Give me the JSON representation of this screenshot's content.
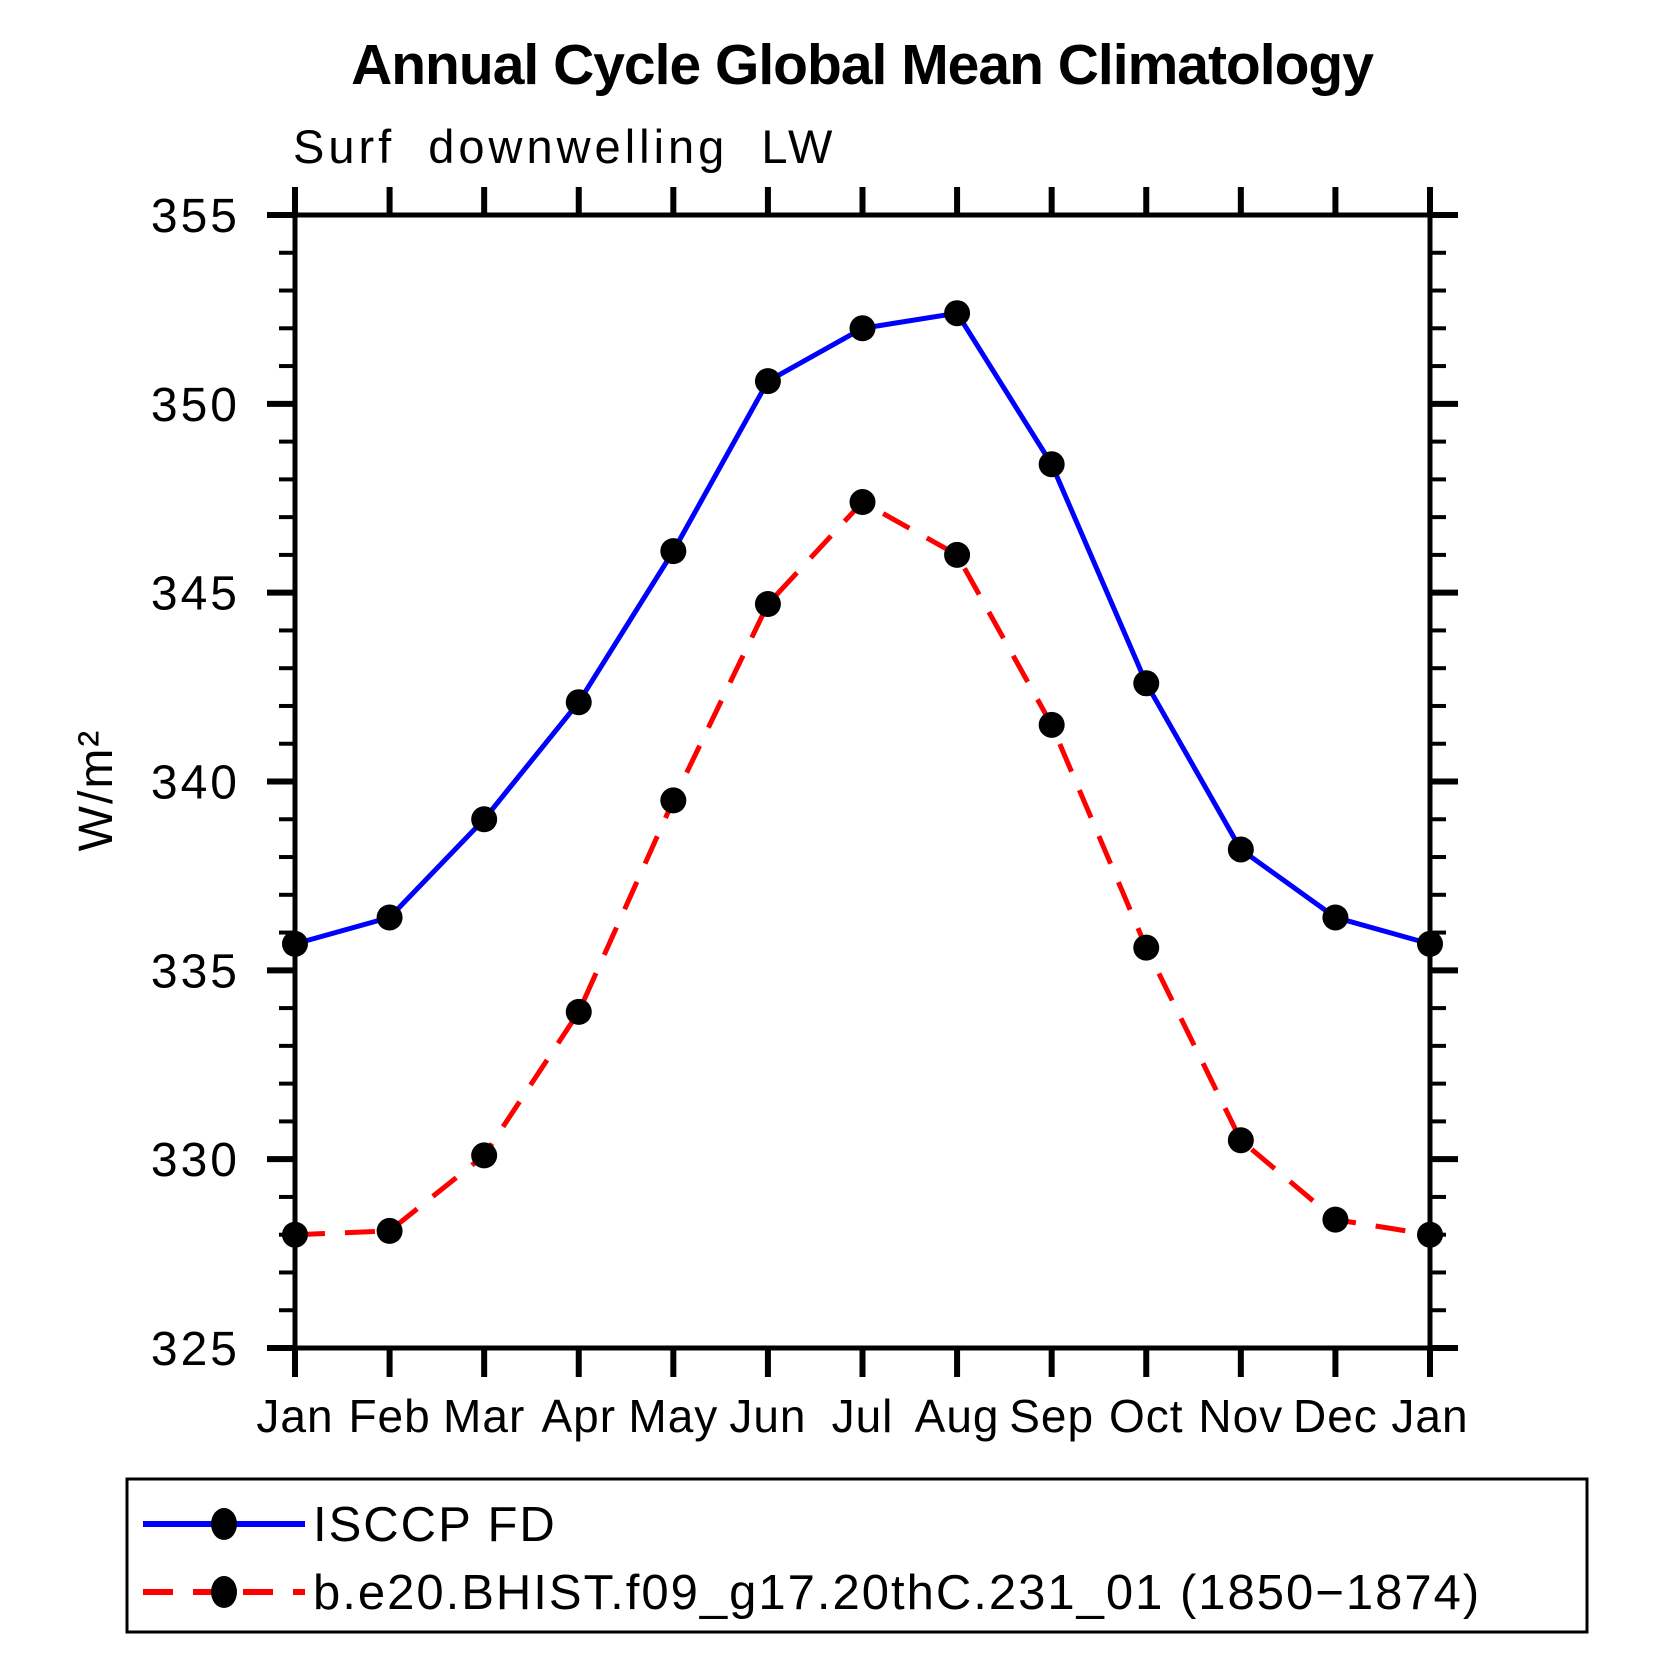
{
  "page": {
    "background": "#ffffff"
  },
  "header": {
    "title": "Annual Cycle Global Mean Climatology",
    "subtitle": "Surf downwelling LW"
  },
  "axes": {
    "ylabel": "W/m²"
  },
  "legend": {
    "entries": [
      {
        "label": "ISCCP FD",
        "color": "#0000ff",
        "style": "solid",
        "marker_color": "#000000"
      },
      {
        "label": "b.e20.BHIST.f09_g17.20thC.231_01 (1850−1874)",
        "color": "#ff0000",
        "style": "dashed",
        "marker_color": "#000000"
      }
    ]
  },
  "chart_data": {
    "type": "line",
    "title": "Annual Cycle Global Mean Climatology",
    "subtitle": "Surf downwelling LW",
    "xlabel": "",
    "ylabel": "W/m²",
    "categories": [
      "Jan",
      "Feb",
      "Mar",
      "Apr",
      "May",
      "Jun",
      "Jul",
      "Aug",
      "Sep",
      "Oct",
      "Nov",
      "Dec",
      "Jan"
    ],
    "ylim": [
      325,
      355
    ],
    "yticks": [
      325,
      330,
      335,
      340,
      345,
      350,
      355
    ],
    "ytick_major": 5,
    "ytick_minor": 1,
    "grid": false,
    "legend_position": "bottom-box",
    "frame_color": "#000000",
    "series": [
      {
        "name": "ISCCP FD",
        "color": "#0000ff",
        "line": "solid",
        "marker": "circle",
        "marker_color": "#000000",
        "values": [
          335.7,
          336.4,
          339.0,
          342.1,
          346.1,
          350.6,
          352.0,
          352.4,
          348.4,
          342.6,
          338.2,
          336.4,
          335.7
        ]
      },
      {
        "name": "b.e20.BHIST.f09_g17.20thC.231_01 (1850−1874)",
        "color": "#ff0000",
        "line": "dashed",
        "marker": "circle",
        "marker_color": "#000000",
        "values": [
          328.0,
          328.1,
          330.1,
          333.9,
          339.5,
          344.7,
          347.4,
          346.0,
          341.5,
          335.6,
          330.5,
          328.4,
          328.0
        ]
      }
    ]
  }
}
